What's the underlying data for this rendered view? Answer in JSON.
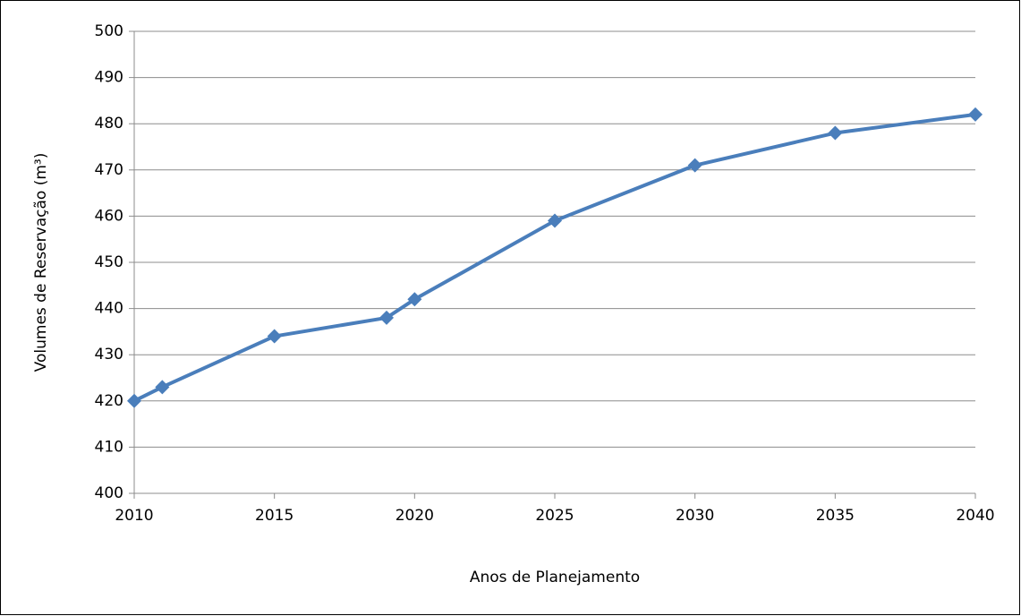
{
  "chart_data": {
    "type": "line",
    "x_label": "Anos de Planejamento",
    "y_label": "Volumes de Reservação (m³)",
    "x": [
      2010,
      2011,
      2015,
      2019,
      2020,
      2025,
      2030,
      2035,
      2040
    ],
    "series": [
      {
        "name": "Volumes de Reservação",
        "color": "#4a7ebb",
        "values": [
          420,
          423,
          434,
          438,
          442,
          459,
          471,
          478,
          482
        ]
      }
    ],
    "xlim": [
      2010,
      2040
    ],
    "xticks": [
      2010,
      2015,
      2020,
      2025,
      2030,
      2035,
      2040
    ],
    "ylim": [
      400,
      500
    ],
    "yticks": [
      400,
      410,
      420,
      430,
      440,
      450,
      460,
      470,
      480,
      490,
      500
    ],
    "grid": true,
    "legend": false
  }
}
